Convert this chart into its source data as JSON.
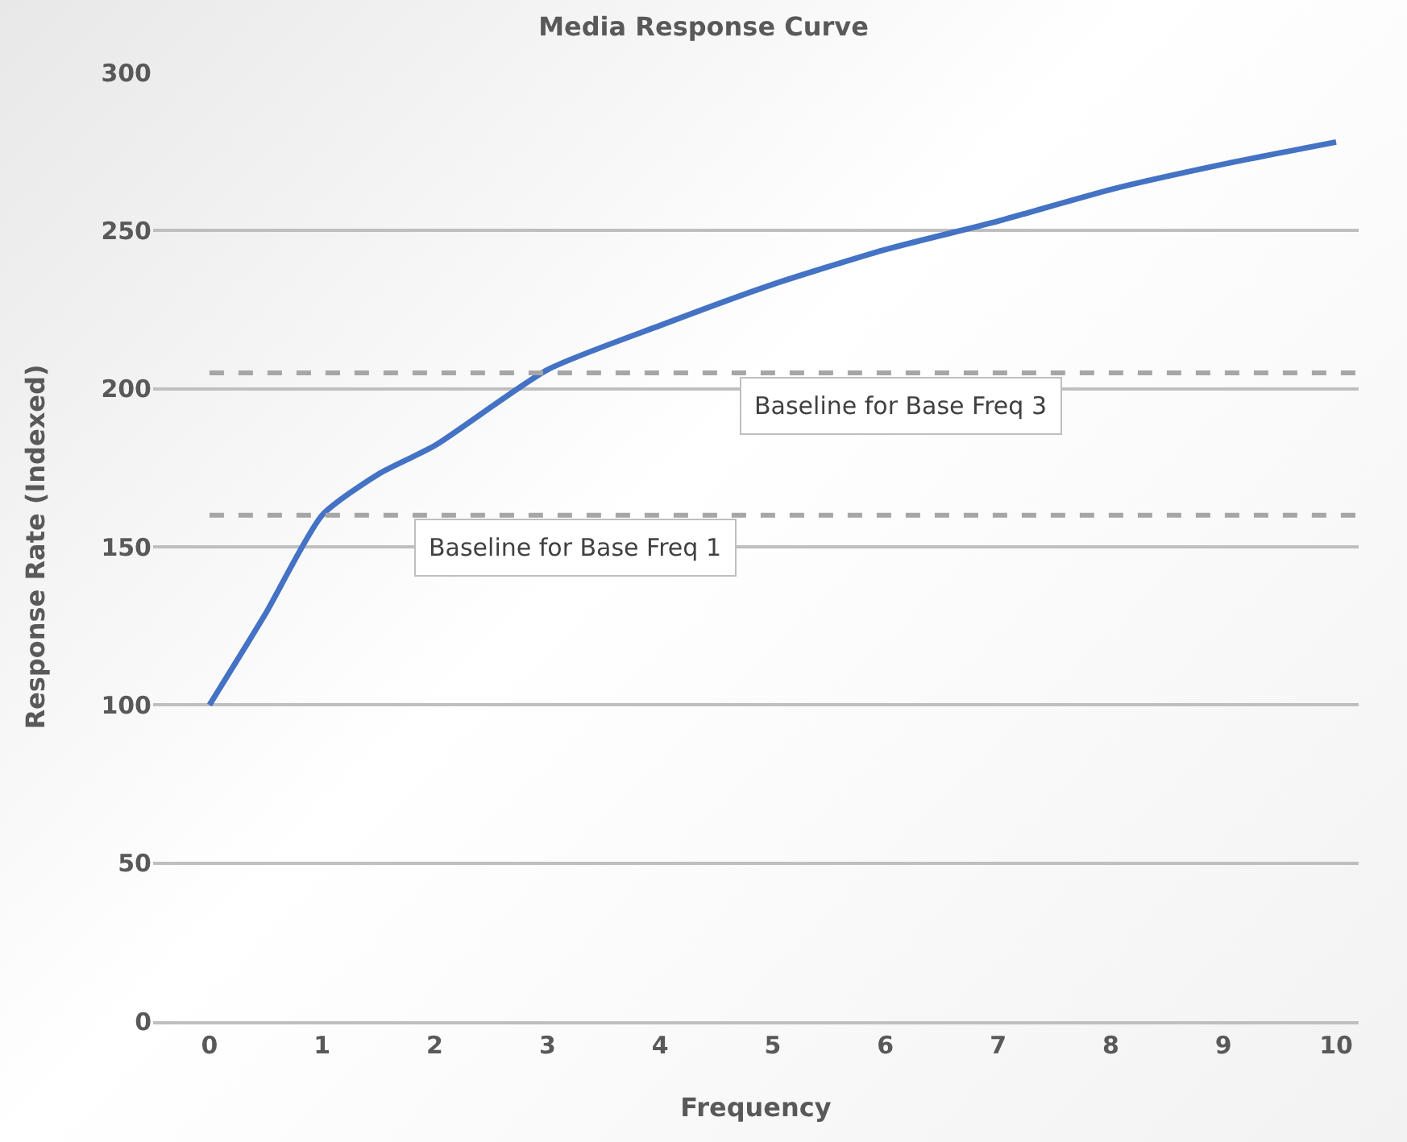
{
  "chart_data": {
    "type": "line",
    "title": "Media Response Curve",
    "xlabel": "Frequency",
    "ylabel": "Response Rate (Indexed)",
    "x": [
      0,
      0.5,
      1,
      1.5,
      2,
      3,
      4,
      5,
      6,
      7,
      8,
      9,
      10
    ],
    "series": [
      {
        "color": "#4472c4",
        "values": [
          100,
          129,
          160,
          173,
          182,
          206,
          220,
          233,
          244,
          253,
          263,
          271,
          278
        ]
      }
    ],
    "xlim": [
      -0.5,
      10.2
    ],
    "xticks": [
      0,
      1,
      2,
      3,
      4,
      5,
      6,
      7,
      8,
      9,
      10
    ],
    "ylim": [
      0,
      300
    ],
    "yticks": [
      0,
      50,
      100,
      150,
      200,
      250,
      300
    ],
    "grid": "y",
    "marker": "none",
    "line_style": "solid",
    "ref_lines": [
      {
        "axis": "y",
        "value": 205,
        "label": "Baseline for Base Freq 3",
        "color": "#a6a6a6",
        "line_style": "dashed"
      },
      {
        "axis": "y",
        "value": 160,
        "label": "Baseline for Base Freq 1",
        "color": "#a6a6a6",
        "line_style": "dashed"
      }
    ]
  }
}
